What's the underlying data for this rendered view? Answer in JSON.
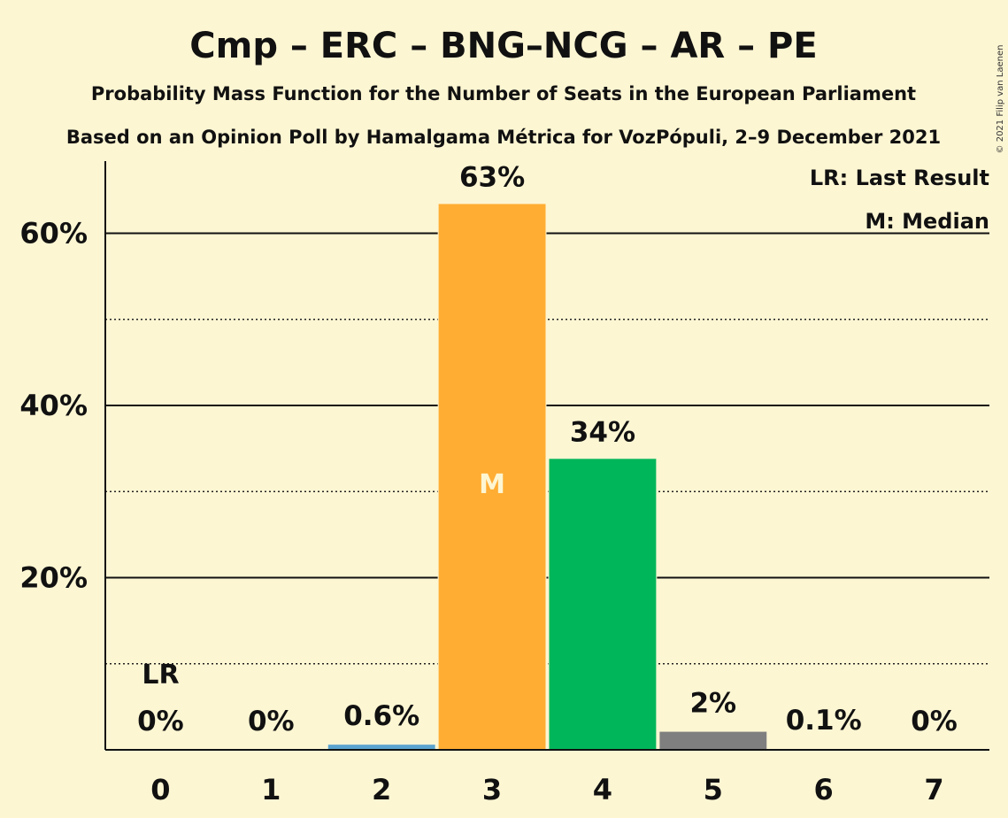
{
  "chart_data": {
    "type": "bar",
    "title": "Cmp – ERC – BNG–NCG – AR – PE",
    "subtitle_1": "Probability Mass Function for the Number of Seats in the European Parliament",
    "subtitle_2": "Based on an Opinion Poll by Hamalgama Métrica for VozPópuli, 2–9 December 2021",
    "copyright": "© 2021 Filip van Laenen",
    "categories": [
      "0",
      "1",
      "2",
      "3",
      "4",
      "5",
      "6",
      "7"
    ],
    "values": [
      0,
      0,
      0.6,
      63.4,
      33.8,
      2.1,
      0.1,
      0
    ],
    "value_labels": [
      "0%",
      "0%",
      "0.6%",
      "63%",
      "34%",
      "2%",
      "0.1%",
      "0%"
    ],
    "bar_colors": [
      "#5BA3CF",
      "#5BA3CF",
      "#5BA3CF",
      "#FFAD33",
      "#00B65A",
      "#7F7F7F",
      "#7F7F7F",
      "#7F7F7F"
    ],
    "ylim": [
      0,
      69
    ],
    "yticks": [
      {
        "value": 20,
        "label": "20%"
      },
      {
        "value": 40,
        "label": "40%"
      },
      {
        "value": 60,
        "label": "60%"
      }
    ],
    "dotted_gridlines": [
      10,
      30,
      50
    ],
    "last_result": {
      "category": "0",
      "label": "LR"
    },
    "median": {
      "category": "3",
      "label": "M"
    },
    "legend": {
      "placement": "top-right",
      "items": [
        "LR: Last Result",
        "M: Median"
      ]
    },
    "background": "#FDF6D3"
  }
}
